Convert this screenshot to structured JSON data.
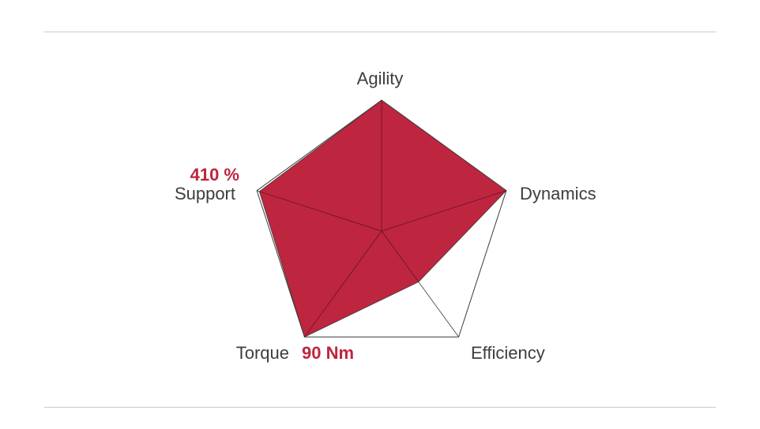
{
  "chart_data": {
    "type": "radar",
    "axes": [
      "Agility",
      "Dynamics",
      "Efficiency",
      "Torque",
      "Support"
    ],
    "values": [
      1.0,
      1.0,
      0.48,
      1.0,
      0.98
    ],
    "value_labels": {
      "Support": "410 %",
      "Torque": "90 Nm"
    },
    "range": [
      0,
      1
    ],
    "grid": false,
    "colors": {
      "fill": "#be253e",
      "outline": "#3c3c3c",
      "label_text": "#3d3d3d",
      "value_text": "#be253e",
      "rule": "#c9c9c9"
    }
  }
}
